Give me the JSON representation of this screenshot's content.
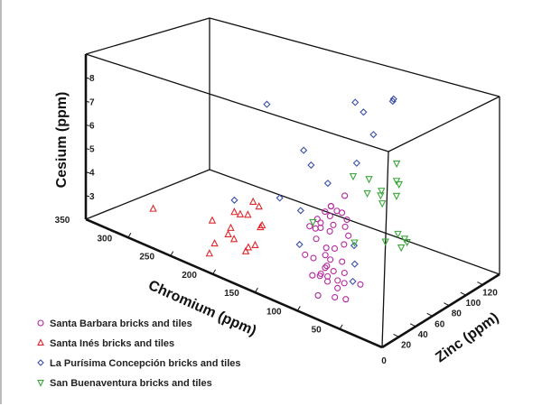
{
  "chart_data": {
    "type": "scatter",
    "projection": "3d",
    "xlabel": "Chromium (ppm)",
    "ylabel": "Zinc (ppm)",
    "zlabel": "Cesium (ppm)",
    "xlim": [
      0,
      350
    ],
    "ylim": [
      0,
      140
    ],
    "zlim": [
      2,
      9
    ],
    "x_ticks": [
      "50",
      "100",
      "150",
      "200",
      "250",
      "300",
      "350"
    ],
    "y_ticks": [
      "0",
      "20",
      "40",
      "60",
      "80",
      "100",
      "120"
    ],
    "z_ticks": [
      "3",
      "4",
      "5",
      "6",
      "7",
      "8"
    ],
    "legend_position": "bottom-left",
    "series": [
      {
        "name": "Santa Barbara bricks and tiles",
        "marker": "circle",
        "color": "#b5279e",
        "points": [
          [
            106,
            60,
            5.3
          ],
          [
            122,
            60,
            4.7
          ],
          [
            122,
            60,
            4.7
          ],
          [
            129,
            60,
            4.4
          ],
          [
            115,
            60,
            4.6
          ],
          [
            109,
            60,
            4.6
          ],
          [
            123,
            60,
            4.3
          ],
          [
            138,
            60,
            4.0
          ],
          [
            134,
            60,
            3.9
          ],
          [
            103,
            60,
            4.4
          ],
          [
            147,
            60,
            3.6
          ],
          [
            140,
            60,
            3.6
          ],
          [
            134,
            60,
            3.7
          ],
          [
            119,
            60,
            4.0
          ],
          [
            105,
            60,
            4.1
          ],
          [
            123,
            60,
            3.7
          ],
          [
            139,
            60,
            3.2
          ],
          [
            101,
            60,
            3.8
          ],
          [
            127,
            60,
            3.0
          ],
          [
            117,
            60,
            3.1
          ],
          [
            106,
            60,
            3.4
          ],
          [
            152,
            60,
            2.4
          ],
          [
            142,
            60,
            2.4
          ],
          [
            128,
            60,
            2.7
          ],
          [
            122,
            60,
            2.6
          ],
          [
            108,
            60,
            2.7
          ],
          [
            126,
            60,
            2.3
          ],
          [
            128,
            60,
            2.2
          ],
          [
            133,
            60,
            1.9
          ],
          [
            143,
            60,
            1.7
          ],
          [
            134,
            60,
            1.8
          ],
          [
            125,
            60,
            1.9
          ],
          [
            118,
            60,
            2.2
          ],
          [
            105,
            60,
            2.3
          ],
          [
            113,
            60,
            1.9
          ],
          [
            125,
            60,
            1.7
          ],
          [
            105,
            60,
            1.9
          ],
          [
            113,
            60,
            1.6
          ],
          [
            86,
            60,
            2.1
          ],
          [
            136,
            60,
            1.0
          ],
          [
            116,
            60,
            1.2
          ],
          [
            103,
            60,
            1.3
          ]
        ]
      },
      {
        "name": "Santa Inés bricks and tiles",
        "marker": "triangle-up",
        "color": "#e0262b",
        "points": [
          [
            312,
            40,
            2.4
          ],
          [
            242,
            40,
            2.9
          ],
          [
            216,
            40,
            3.6
          ],
          [
            209,
            40,
            3.6
          ],
          [
            200,
            40,
            3.7
          ],
          [
            194,
            40,
            4.3
          ],
          [
            187,
            40,
            4.2
          ],
          [
            220,
            40,
            2.9
          ],
          [
            223,
            40,
            2.6
          ],
          [
            216,
            40,
            2.5
          ],
          [
            239,
            40,
            2.0
          ],
          [
            245,
            40,
            1.5
          ],
          [
            183,
            40,
            3.5
          ],
          [
            185,
            40,
            3.4
          ],
          [
            191,
            40,
            2.6
          ],
          [
            199,
            40,
            2.4
          ],
          [
            202,
            40,
            2.2
          ]
        ]
      },
      {
        "name": "La Purísima Concepción bricks and tiles",
        "marker": "diamond",
        "color": "#3a4fa8",
        "points": [
          [
            219,
            80,
            7.4
          ],
          [
            257,
            80,
            2.9
          ],
          [
            154,
            120,
            7.6
          ],
          [
            144,
            120,
            7.3
          ],
          [
            108,
            120,
            8.2
          ],
          [
            109,
            120,
            8.1
          ],
          [
            132,
            120,
            6.5
          ],
          [
            175,
            80,
            6.0
          ],
          [
            152,
            120,
            5.1
          ],
          [
            166,
            80,
            5.5
          ],
          [
            146,
            80,
            5.0
          ],
          [
            203,
            80,
            3.7
          ],
          [
            178,
            80,
            3.5
          ],
          [
            179,
            80,
            2.1
          ],
          [
            114,
            80,
            2.9
          ],
          [
            93,
            60,
            2.8
          ],
          [
            95,
            60,
            2.1
          ]
        ]
      },
      {
        "name": "San Buenaventura bricks and tiles",
        "marker": "triangle-down",
        "color": "#3aa83a",
        "points": [
          [
            94,
            110,
            5.9
          ],
          [
            146,
            110,
            4.8
          ],
          [
            127,
            110,
            4.9
          ],
          [
            94,
            110,
            5.2
          ],
          [
            91,
            110,
            5.1
          ],
          [
            129,
            110,
            4.3
          ],
          [
            112,
            110,
            4.6
          ],
          [
            113,
            110,
            4.4
          ],
          [
            94,
            110,
            4.6
          ],
          [
            111,
            110,
            4.1
          ],
          [
            194,
            110,
            2.3
          ],
          [
            144,
            110,
            2.1
          ],
          [
            107,
            110,
            2.6
          ],
          [
            92,
            110,
            3.1
          ],
          [
            84,
            110,
            3.0
          ],
          [
            81,
            110,
            2.9
          ],
          [
            88,
            110,
            2.6
          ]
        ]
      }
    ]
  }
}
